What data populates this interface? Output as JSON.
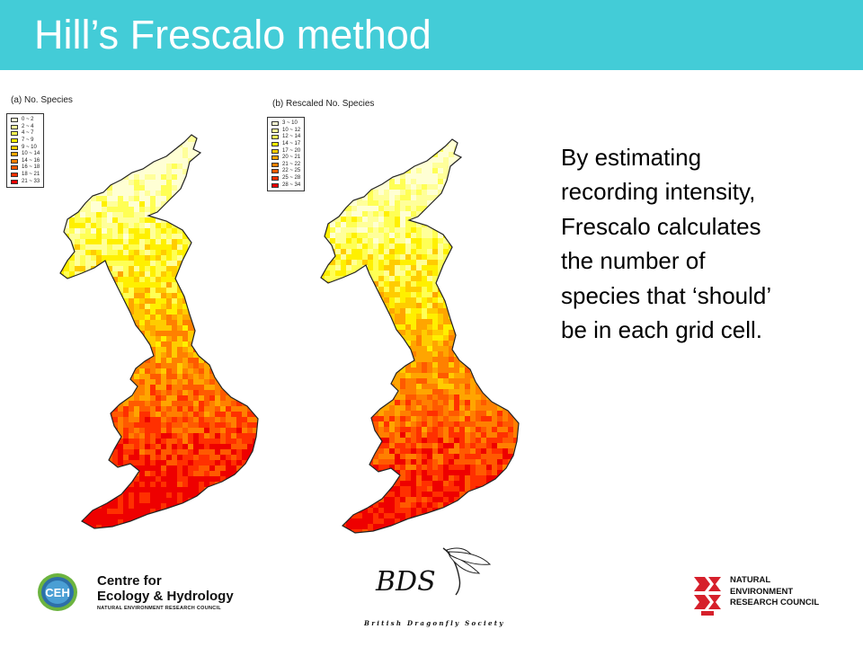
{
  "slide": {
    "title": "Hill’s Frescalo method",
    "body_lines": [
      "By estimating",
      "recording intensity,",
      "Frescalo calculates",
      "the number of",
      "species that ‘should’",
      "be in each grid cell."
    ]
  },
  "maps": [
    {
      "title": "(a) No. Species",
      "legend": [
        {
          "label": "0 ~ 2",
          "color": "#ffffd4"
        },
        {
          "label": "2 ~ 4",
          "color": "#ffff9a"
        },
        {
          "label": "4 ~ 7",
          "color": "#ffff55"
        },
        {
          "label": "7 ~ 9",
          "color": "#fff000"
        },
        {
          "label": "9 ~ 10",
          "color": "#ffcc00"
        },
        {
          "label": "10 ~ 14",
          "color": "#ffa500"
        },
        {
          "label": "14 ~ 16",
          "color": "#ff8000"
        },
        {
          "label": "16 ~ 18",
          "color": "#ff5a00"
        },
        {
          "label": "18 ~ 21",
          "color": "#ff3000"
        },
        {
          "label": "21 ~ 33",
          "color": "#ee0000"
        }
      ]
    },
    {
      "title": "(b) Rescaled No. Species",
      "legend": [
        {
          "label": "3 ~ 10",
          "color": "#ffffd4"
        },
        {
          "label": "10 ~ 12",
          "color": "#ffff9a"
        },
        {
          "label": "12 ~ 14",
          "color": "#ffff55"
        },
        {
          "label": "14 ~ 17",
          "color": "#fff000"
        },
        {
          "label": "17 ~ 20",
          "color": "#ffcc00"
        },
        {
          "label": "20 ~ 21",
          "color": "#ffa500"
        },
        {
          "label": "21 ~ 22",
          "color": "#ff8000"
        },
        {
          "label": "22 ~ 25",
          "color": "#ff5a00"
        },
        {
          "label": "25 ~ 28",
          "color": "#ff3000"
        },
        {
          "label": "28 ~ 34",
          "color": "#ee0000"
        }
      ]
    }
  ],
  "logos": {
    "ceh": {
      "emblem": "CEH",
      "line1": "Centre for",
      "line2": "Ecology & Hydrology",
      "line3": "NATURAL ENVIRONMENT RESEARCH COUNCIL"
    },
    "bds": {
      "name": "BDS",
      "tagline": "British Dragonfly Society"
    },
    "nerc": {
      "lines": [
        "NATURAL",
        "ENVIRONMENT",
        "RESEARCH COUNCIL"
      ]
    }
  },
  "colors": {
    "header": "#43ccd7",
    "nerc_red": "#d6202b",
    "ceh_blue": "#2d6fa8",
    "ceh_green": "#6cb43f"
  }
}
